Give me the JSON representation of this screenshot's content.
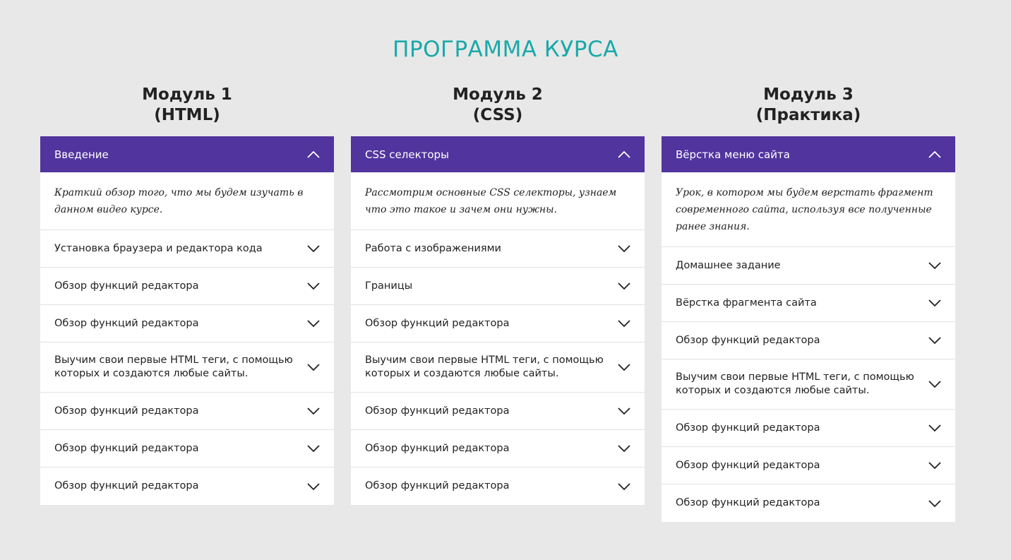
{
  "title": "ПРОГРАММА КУРСА",
  "colors": {
    "background": "#e8e8e8",
    "title": "#1aa9a9",
    "accordion_header": "#51349d",
    "panel": "#ffffff",
    "divider": "#e1e1e1"
  },
  "icons": {
    "expanded": "chevron-up-icon",
    "collapsed": "chevron-down-icon"
  },
  "modules": [
    {
      "heading_line1": "Модуль 1",
      "heading_line2": "(HTML)",
      "open_item": {
        "label": "Введение",
        "description": "Краткий обзор того, что мы будем изучать в данном видео курсе."
      },
      "items": [
        "Установка браузера и редактора кода",
        "Обзор функций редактора",
        "Обзор функций редактора",
        "Выучим свои первые HTML теги, с помощью которых и создаются любые сайты.",
        "Обзор функций редактора",
        "Обзор функций редактора",
        "Обзор функций редактора"
      ]
    },
    {
      "heading_line1": "Модуль 2",
      "heading_line2": "(CSS)",
      "open_item": {
        "label": "CSS селекторы",
        "description": "Рассмотрим основные CSS селекторы, узнаем что это такое и зачем они нужны."
      },
      "items": [
        "Работа с изображениями",
        "Границы",
        "Обзор функций редактора",
        "Выучим свои первые HTML теги, с помощью которых и создаются любые сайты.",
        "Обзор функций редактора",
        "Обзор функций редактора",
        "Обзор функций редактора"
      ]
    },
    {
      "heading_line1": "Модуль 3",
      "heading_line2": "(Практика)",
      "open_item": {
        "label": "Вёрстка меню сайта",
        "description": "Урок, в котором мы будем верстать фрагмент современного сайта, используя все полученные ранее знания."
      },
      "items": [
        "Домашнее задание",
        "Вёрстка фрагмента сайта",
        "Обзор функций редактора",
        "Выучим свои первые HTML теги, с помощью которых и создаются любые сайты.",
        "Обзор функций редактора",
        "Обзор функций редактора",
        "Обзор функций редактора"
      ]
    }
  ]
}
